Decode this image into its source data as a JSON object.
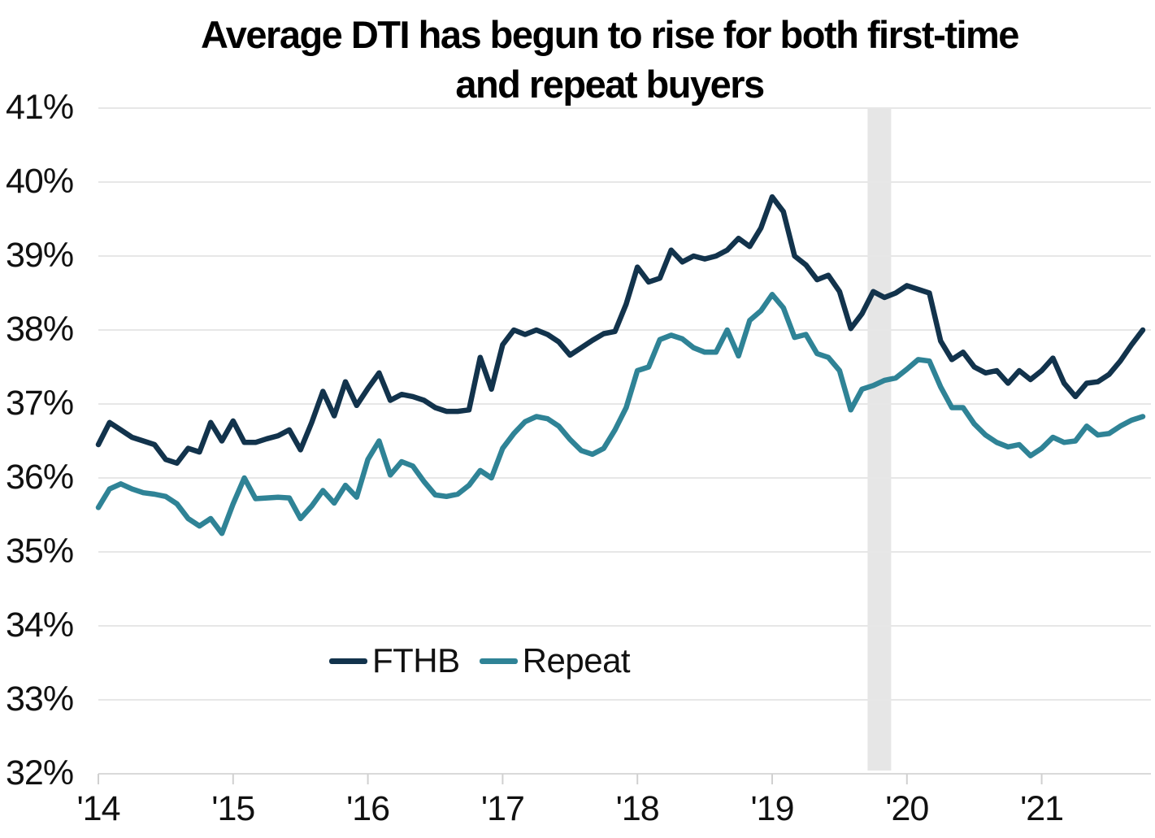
{
  "title": {
    "line1": "Average DTI has begun to rise for both first-time",
    "line2": "and repeat buyers"
  },
  "legend": [
    {
      "label": "FTHB"
    },
    {
      "label": "Repeat"
    }
  ],
  "colors": {
    "fthb_line": "#12334C",
    "repeat_line": "#2F8396",
    "gridline": "#e7e7e7",
    "axis_line": "#d9d9d9",
    "tick_mark": "#d0d0d0",
    "highlight_band": "#e6e6e6",
    "text": "#111111",
    "title_text": "#000000"
  },
  "chart_data": {
    "type": "line",
    "title": "Average DTI has begun to rise for both first-time and repeat buyers",
    "x_frequency": "monthly",
    "x_start": "2014-01",
    "x_end": "2021-10",
    "x_tick_labels": [
      "'14",
      "'15",
      "'16",
      "'17",
      "'18",
      "'19",
      "'20",
      "'21"
    ],
    "y_tick_labels": [
      "41%",
      "40%",
      "39%",
      "38%",
      "37%",
      "36%",
      "35%",
      "34%",
      "33%",
      "32%"
    ],
    "ylim": [
      32,
      41
    ],
    "y_unit": "%",
    "grid": "horizontal",
    "legend_position": "inside lower center",
    "shaded_region": {
      "note": "vertical gray highlight band, approx Oct-Nov 2019",
      "from_month_index": 68.5,
      "to_month_index": 70.6
    },
    "series": [
      {
        "name": "FTHB",
        "color": "#12334C",
        "values": [
          36.45,
          36.75,
          36.65,
          36.55,
          36.5,
          36.45,
          36.25,
          36.2,
          36.4,
          36.35,
          36.75,
          36.5,
          36.77,
          36.48,
          36.48,
          36.53,
          36.57,
          36.65,
          36.38,
          36.75,
          37.17,
          36.84,
          37.3,
          36.98,
          37.21,
          37.42,
          37.05,
          37.13,
          37.1,
          37.05,
          36.95,
          36.9,
          36.9,
          36.92,
          37.63,
          37.2,
          37.8,
          38.0,
          37.94,
          38.0,
          37.94,
          37.84,
          37.66,
          37.76,
          37.86,
          37.95,
          37.98,
          38.35,
          38.85,
          38.65,
          38.7,
          39.08,
          38.92,
          39.0,
          38.96,
          39.0,
          39.08,
          39.24,
          39.13,
          39.38,
          39.8,
          39.6,
          39.0,
          38.88,
          38.68,
          38.74,
          38.52,
          38.02,
          38.22,
          38.52,
          38.44,
          38.5,
          38.6,
          38.55,
          38.5,
          37.85,
          37.6,
          37.7,
          37.5,
          37.42,
          37.45,
          37.28,
          37.45,
          37.33,
          37.45,
          37.62,
          37.28,
          37.1,
          37.28,
          37.3,
          37.4,
          37.58,
          37.8,
          38.0
        ]
      },
      {
        "name": "Repeat",
        "color": "#2F8396",
        "values": [
          35.6,
          35.85,
          35.92,
          35.85,
          35.8,
          35.78,
          35.75,
          35.65,
          35.45,
          35.35,
          35.45,
          35.25,
          35.65,
          36.0,
          35.72,
          35.73,
          35.74,
          35.73,
          35.45,
          35.62,
          35.83,
          35.66,
          35.9,
          35.74,
          36.25,
          36.5,
          36.04,
          36.22,
          36.16,
          35.95,
          35.77,
          35.75,
          35.78,
          35.9,
          36.1,
          36.0,
          36.4,
          36.6,
          36.76,
          36.83,
          36.8,
          36.7,
          36.52,
          36.37,
          36.32,
          36.4,
          36.65,
          36.95,
          37.45,
          37.5,
          37.87,
          37.93,
          37.88,
          37.76,
          37.7,
          37.7,
          38.0,
          37.65,
          38.13,
          38.26,
          38.48,
          38.3,
          37.9,
          37.94,
          37.68,
          37.63,
          37.45,
          36.92,
          37.2,
          37.25,
          37.32,
          37.35,
          37.47,
          37.6,
          37.58,
          37.23,
          36.95,
          36.95,
          36.73,
          36.58,
          36.48,
          36.42,
          36.45,
          36.3,
          36.4,
          36.55,
          36.48,
          36.5,
          36.7,
          36.58,
          36.6,
          36.7,
          36.78,
          36.83
        ]
      }
    ]
  }
}
